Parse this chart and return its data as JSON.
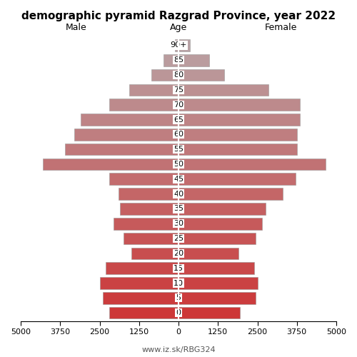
{
  "title": "demographic pyramid Razgrad Province, year 2022",
  "xlabel_left": "Male",
  "xlabel_right": "Female",
  "xlabel_center": "Age",
  "footer": "www.iz.sk/RBG324",
  "age_labels": [
    "0",
    "5",
    "10",
    "15",
    "20",
    "25",
    "30",
    "35",
    "40",
    "45",
    "50",
    "55",
    "60",
    "65",
    "70",
    "75",
    "80",
    "85",
    "90+"
  ],
  "male_values": [
    2200,
    2400,
    2500,
    2300,
    1500,
    1750,
    2050,
    1850,
    1900,
    2200,
    4300,
    3600,
    3300,
    3100,
    2200,
    1550,
    850,
    480,
    110
  ],
  "female_values": [
    1950,
    2450,
    2500,
    2400,
    1900,
    2450,
    2650,
    2750,
    3300,
    3700,
    4650,
    3750,
    3750,
    3850,
    3850,
    2850,
    1450,
    980,
    360
  ],
  "xlim": 5000,
  "bg_color": "#ffffff",
  "bar_height": 0.8,
  "title_fontsize": 11,
  "label_fontsize": 9,
  "tick_fontsize": 8,
  "footer_fontsize": 8,
  "xticks": [
    0,
    1250,
    2500,
    3750,
    5000
  ],
  "xtick_labels": [
    "0",
    "1250",
    "2500",
    "3750",
    "5000"
  ]
}
